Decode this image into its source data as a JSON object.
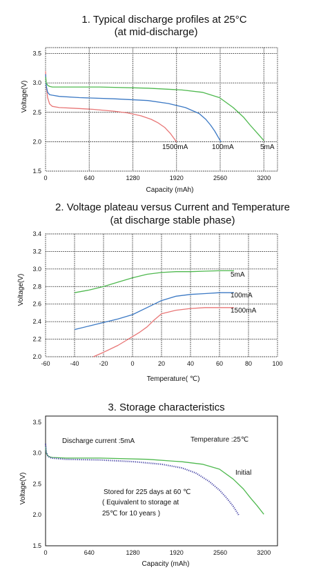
{
  "chart_data": [
    {
      "type": "line",
      "title": "1. Typical discharge profiles at 25°C",
      "subtitle": "(at mid-discharge)",
      "xlabel": "Capacity (mAh)",
      "ylabel": "Voltage(V)",
      "xlim": [
        0,
        3400
      ],
      "ylim": [
        1.5,
        3.6
      ],
      "xticks": [
        0,
        640,
        1280,
        1920,
        2560,
        3200
      ],
      "yticks": [
        1.5,
        2.0,
        2.5,
        3.0,
        3.5
      ],
      "xtick_labels": [
        "0",
        "640",
        "1280",
        "1920",
        "2560",
        "3200"
      ],
      "ytick_labels": [
        "1.5",
        "2.0",
        "2.5",
        "3.0",
        "3.5"
      ],
      "grid": true,
      "series": [
        {
          "name": "1500mA",
          "color": "#e87575",
          "x": [
            0,
            10,
            30,
            60,
            100,
            200,
            400,
            700,
            1000,
            1200,
            1400,
            1550,
            1650,
            1750,
            1830,
            1880,
            1920
          ],
          "y": [
            3.2,
            2.95,
            2.75,
            2.64,
            2.6,
            2.58,
            2.57,
            2.55,
            2.52,
            2.49,
            2.44,
            2.38,
            2.32,
            2.24,
            2.14,
            2.06,
            2.0
          ]
        },
        {
          "name": "100mA",
          "color": "#3a78c4",
          "x": [
            0,
            10,
            30,
            60,
            100,
            200,
            500,
            1000,
            1500,
            1800,
            2050,
            2250,
            2350,
            2420,
            2480,
            2530,
            2570
          ],
          "y": [
            3.15,
            2.95,
            2.84,
            2.8,
            2.79,
            2.77,
            2.75,
            2.73,
            2.7,
            2.65,
            2.58,
            2.48,
            2.38,
            2.28,
            2.18,
            2.08,
            2.0
          ]
        },
        {
          "name": "5mA",
          "color": "#4db84d",
          "x": [
            0,
            10,
            30,
            60,
            100,
            300,
            800,
            1500,
            2000,
            2300,
            2550,
            2750,
            2900,
            3000,
            3100,
            3200
          ],
          "y": [
            3.1,
            3.0,
            2.96,
            2.94,
            2.93,
            2.93,
            2.93,
            2.91,
            2.88,
            2.84,
            2.75,
            2.58,
            2.42,
            2.28,
            2.15,
            2.02
          ]
        }
      ]
    },
    {
      "type": "line",
      "title": "2. Voltage plateau versus Current and Temperature",
      "subtitle": "(at discharge stable phase)",
      "xlabel": "Temperature( ℃)",
      "ylabel": "Voltage(V)",
      "xlim": [
        -60,
        100
      ],
      "ylim": [
        2.0,
        3.4
      ],
      "xticks": [
        -60,
        -40,
        -20,
        0,
        20,
        40,
        60,
        80,
        100
      ],
      "yticks": [
        2.0,
        2.2,
        2.4,
        2.6,
        2.8,
        3.0,
        3.2,
        3.4
      ],
      "xtick_labels": [
        "-60",
        "-40",
        "-20",
        "0",
        "20",
        "40",
        "60",
        "80",
        "100"
      ],
      "ytick_labels": [
        "2.0",
        "2.2",
        "2.4",
        "2.6",
        "2.8",
        "3.0",
        "3.2",
        "3.4"
      ],
      "grid": true,
      "series": [
        {
          "name": "5mA",
          "color": "#4db84d",
          "x": [
            -40,
            -30,
            -20,
            -10,
            0,
            10,
            20,
            30,
            40,
            50,
            60,
            70
          ],
          "y": [
            2.73,
            2.76,
            2.8,
            2.85,
            2.9,
            2.94,
            2.96,
            2.97,
            2.97,
            2.975,
            2.98,
            2.98
          ]
        },
        {
          "name": "100mA",
          "color": "#3a78c4",
          "x": [
            -40,
            -30,
            -20,
            -10,
            0,
            10,
            20,
            30,
            40,
            50,
            60,
            70
          ],
          "y": [
            2.31,
            2.35,
            2.39,
            2.43,
            2.48,
            2.56,
            2.64,
            2.69,
            2.71,
            2.72,
            2.73,
            2.73
          ]
        },
        {
          "name": "1500mA",
          "color": "#e87575",
          "x": [
            -27,
            -20,
            -10,
            0,
            5,
            10,
            15,
            20,
            30,
            40,
            50,
            60,
            70
          ],
          "y": [
            2.0,
            2.05,
            2.13,
            2.23,
            2.28,
            2.34,
            2.42,
            2.49,
            2.53,
            2.55,
            2.56,
            2.56,
            2.56
          ]
        }
      ]
    },
    {
      "type": "line",
      "title": "3. Storage characteristics",
      "xlabel": "Capacity (mAh)",
      "ylabel": "Voltage(V)",
      "xlim": [
        0,
        3400
      ],
      "ylim": [
        1.5,
        3.6
      ],
      "xticks": [
        0,
        640,
        1280,
        1920,
        2560,
        3200
      ],
      "yticks": [
        1.5,
        2.0,
        2.5,
        3.0,
        3.5
      ],
      "xtick_labels": [
        "0",
        "640",
        "1280",
        "1920",
        "2560",
        "3200"
      ],
      "ytick_labels": [
        "1.5",
        "2.0",
        "2.5",
        "3.0",
        "3.5"
      ],
      "grid": false,
      "annotations": [
        "Discharge current  :5mA",
        "Temperature :25℃",
        "Initial",
        "Stored for 225 days at 60   ℃",
        "( Equivalent to storage at",
        "25℃ for 10 years   )"
      ],
      "series": [
        {
          "name": "Initial",
          "color": "#4db84d",
          "x": [
            0,
            10,
            30,
            60,
            100,
            300,
            800,
            1500,
            2000,
            2300,
            2550,
            2750,
            2900,
            3000,
            3100,
            3200
          ],
          "y": [
            3.1,
            3.0,
            2.96,
            2.94,
            2.93,
            2.92,
            2.92,
            2.9,
            2.86,
            2.82,
            2.74,
            2.58,
            2.42,
            2.28,
            2.15,
            2.01
          ]
        },
        {
          "name": "Stored for 225 days at 60 ℃",
          "color": "#4a48a8",
          "x": [
            0,
            10,
            30,
            60,
            100,
            300,
            800,
            1300,
            1700,
            2000,
            2200,
            2400,
            2550,
            2650,
            2750,
            2830
          ],
          "y": [
            3.15,
            3.02,
            2.96,
            2.93,
            2.92,
            2.9,
            2.89,
            2.86,
            2.82,
            2.76,
            2.68,
            2.54,
            2.4,
            2.28,
            2.14,
            2.0
          ]
        }
      ]
    }
  ]
}
